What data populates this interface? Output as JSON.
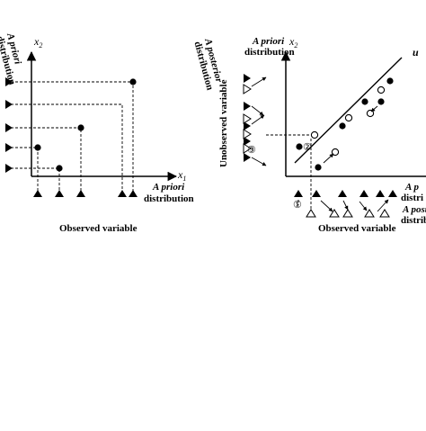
{
  "left_panel": {
    "axis_x": "x",
    "axis_x_sub": "1",
    "axis_y": "x",
    "axis_y_sub": "2",
    "x_dist_line1": "A priori",
    "x_dist_line2": "distribution",
    "y_dist_line1": "A priori",
    "y_dist_line2": "distribution",
    "observed_label": "Observed variable"
  },
  "right_panel": {
    "axis_y": "x",
    "axis_y_sub": "2",
    "line_label": "u",
    "top_label_line1": "A priori",
    "top_label_line2": "distribution",
    "posterior_label_line1": "A posterior",
    "posterior_label_line2": "distribution",
    "unobserved_label": "Unobserved variable",
    "right_label_1": "A p",
    "right_label_2": "distri",
    "right_label_3": "A poste",
    "right_label_4": "distribu",
    "observed_label": "Observed variable",
    "marker_1": "①",
    "marker_2": "②",
    "marker_3": "③"
  }
}
